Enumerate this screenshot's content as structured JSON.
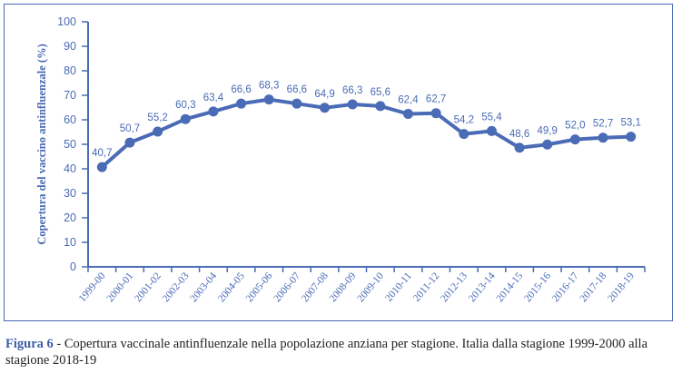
{
  "chart_data": {
    "type": "line",
    "ylabel": "Copertura del vaccino antinfluenzale (%)",
    "xlabel": "",
    "ylim": [
      0,
      100
    ],
    "yticks": [
      "0",
      "10",
      "20",
      "30",
      "40",
      "50",
      "60",
      "70",
      "80",
      "90",
      "100"
    ],
    "categories": [
      "1999-00",
      "2000-01",
      "2001-02",
      "2002-03",
      "2003-04",
      "2004-05",
      "2005-06",
      "2006-07",
      "2007-08",
      "2008-09",
      "2009-10",
      "2010-11",
      "2011-12",
      "2012-13",
      "2013-14",
      "2014-15",
      "2015-16",
      "2016-17",
      "2017-18",
      "2018-19"
    ],
    "values": [
      40.7,
      50.7,
      55.2,
      60.3,
      63.4,
      66.6,
      68.3,
      66.6,
      64.9,
      66.3,
      65.6,
      62.4,
      62.7,
      54.2,
      55.4,
      48.6,
      49.9,
      52.0,
      52.7,
      53.1
    ],
    "labels": [
      "40,7",
      "50,7",
      "55,2",
      "60,3",
      "63,4",
      "66,6",
      "68,3",
      "66,6",
      "64,9",
      "66,3",
      "65,6",
      "62,4",
      "62,7",
      "54,2",
      "55,4",
      "48,6",
      "49,9",
      "52,0",
      "52,7",
      "53,1"
    ],
    "color": "#4a6bb5",
    "grid": false
  },
  "caption": {
    "figure": "Figura 6",
    "text": " - Copertura vaccinale antinfluenzale nella popolazione anziana per stagione. Italia dalla stagione 1999-2000 alla stagione 2018-19"
  }
}
